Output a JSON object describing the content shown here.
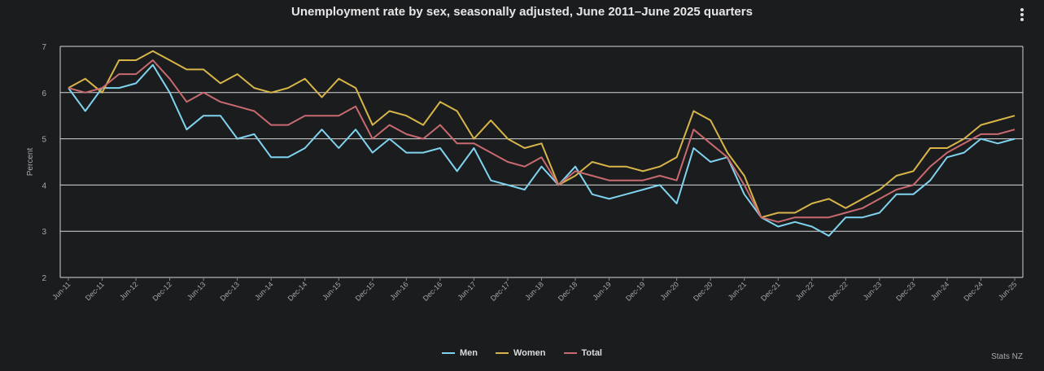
{
  "title": "Unemployment rate by sex, seasonally adjusted, June 2011–June 2025 quarters",
  "credit": "Stats NZ",
  "menu_icon": "kebab-menu-icon",
  "chart_data": {
    "type": "line",
    "title": "Unemployment rate by sex, seasonally adjusted, June 2011–June 2025 quarters",
    "ylabel": "Percent",
    "xlabel": "",
    "ylim": [
      2,
      7
    ],
    "yticks": [
      "2",
      "3",
      "4",
      "5",
      "6",
      "7"
    ],
    "grid": true,
    "legend_position": "bottom-center",
    "tick_labels": [
      "Jun-11",
      "Dec-11",
      "Jun-12",
      "Dec-12",
      "Jun-13",
      "Dec-13",
      "Jun-14",
      "Dec-14",
      "Jun-15",
      "Dec-15",
      "Jun-16",
      "Dec-16",
      "Jun-17",
      "Dec-17",
      "Jun-18",
      "Dec-18",
      "Jun-19",
      "Dec-19",
      "Jun-20",
      "Dec-20",
      "Jun-21",
      "Dec-21",
      "Jun-22",
      "Dec-22",
      "Jun-23",
      "Dec-23",
      "Jun-24",
      "Dec-24",
      "Jun-25"
    ],
    "x": [
      "Jun-11",
      "Sep-11",
      "Dec-11",
      "Mar-12",
      "Jun-12",
      "Sep-12",
      "Dec-12",
      "Mar-13",
      "Jun-13",
      "Sep-13",
      "Dec-13",
      "Mar-14",
      "Jun-14",
      "Sep-14",
      "Dec-14",
      "Mar-15",
      "Jun-15",
      "Sep-15",
      "Dec-15",
      "Mar-16",
      "Jun-16",
      "Sep-16",
      "Dec-16",
      "Mar-17",
      "Jun-17",
      "Sep-17",
      "Dec-17",
      "Mar-18",
      "Jun-18",
      "Sep-18",
      "Dec-18",
      "Mar-19",
      "Jun-19",
      "Sep-19",
      "Dec-19",
      "Mar-20",
      "Jun-20",
      "Sep-20",
      "Dec-20",
      "Mar-21",
      "Jun-21",
      "Sep-21",
      "Dec-21",
      "Mar-22",
      "Jun-22",
      "Sep-22",
      "Dec-22",
      "Mar-23",
      "Jun-23",
      "Sep-23",
      "Dec-23",
      "Mar-24",
      "Jun-24",
      "Sep-24",
      "Dec-24",
      "Mar-25",
      "Jun-25"
    ],
    "series": [
      {
        "name": "Men",
        "color": "#7fd3ef",
        "values": [
          6.1,
          5.6,
          6.1,
          6.1,
          6.2,
          6.6,
          6.0,
          5.2,
          5.5,
          5.5,
          5.0,
          5.1,
          4.6,
          4.6,
          4.8,
          5.2,
          4.8,
          5.2,
          4.7,
          5.0,
          4.7,
          4.7,
          4.8,
          4.3,
          4.8,
          4.1,
          4.0,
          3.9,
          4.4,
          4.0,
          4.4,
          3.8,
          3.7,
          3.8,
          3.9,
          4.0,
          3.6,
          4.8,
          4.5,
          4.6,
          3.8,
          3.3,
          3.1,
          3.2,
          3.1,
          2.9,
          3.3,
          3.3,
          3.4,
          3.8,
          3.8,
          4.1,
          4.6,
          4.7,
          5.0,
          4.9,
          5.0
        ]
      },
      {
        "name": "Women",
        "color": "#d7b548",
        "values": [
          6.1,
          6.3,
          6.0,
          6.7,
          6.7,
          6.9,
          6.7,
          6.5,
          6.5,
          6.2,
          6.4,
          6.1,
          6.0,
          6.1,
          6.3,
          5.9,
          6.3,
          6.1,
          5.3,
          5.6,
          5.5,
          5.3,
          5.8,
          5.6,
          5.0,
          5.4,
          5.0,
          4.8,
          4.9,
          4.0,
          4.2,
          4.5,
          4.4,
          4.4,
          4.3,
          4.4,
          4.6,
          5.6,
          5.4,
          4.7,
          4.2,
          3.3,
          3.4,
          3.4,
          3.6,
          3.7,
          3.5,
          3.7,
          3.9,
          4.2,
          4.3,
          4.8,
          4.8,
          5.0,
          5.3,
          5.4,
          5.5
        ]
      },
      {
        "name": "Total",
        "color": "#c86a6f",
        "values": [
          6.1,
          6.0,
          6.1,
          6.4,
          6.4,
          6.7,
          6.3,
          5.8,
          6.0,
          5.8,
          5.7,
          5.6,
          5.3,
          5.3,
          5.5,
          5.5,
          5.5,
          5.7,
          5.0,
          5.3,
          5.1,
          5.0,
          5.3,
          4.9,
          4.9,
          4.7,
          4.5,
          4.4,
          4.6,
          4.0,
          4.3,
          4.2,
          4.1,
          4.1,
          4.1,
          4.2,
          4.1,
          5.2,
          4.9,
          4.6,
          4.0,
          3.3,
          3.2,
          3.3,
          3.3,
          3.3,
          3.4,
          3.5,
          3.7,
          3.9,
          4.0,
          4.4,
          4.7,
          4.9,
          5.1,
          5.1,
          5.2
        ]
      }
    ]
  }
}
